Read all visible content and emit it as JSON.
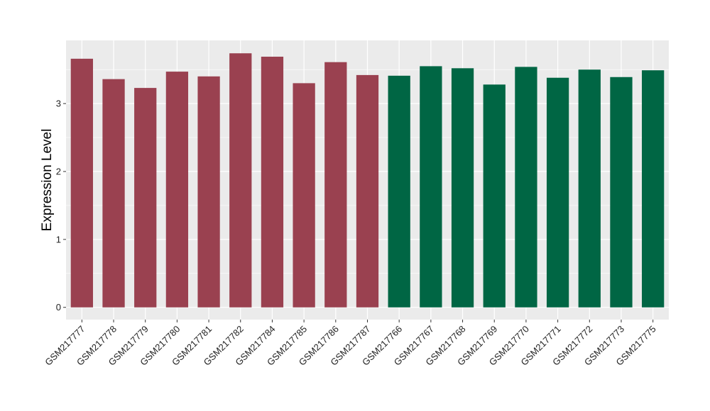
{
  "chart_data": {
    "type": "bar",
    "ylabel": "Expression Level",
    "xlabel": "",
    "ylim": [
      -0.18,
      3.93
    ],
    "yticks": [
      0,
      1,
      2,
      3
    ],
    "grid": true,
    "background": "#EBEBEB",
    "colors": {
      "group_a": "#9A4150",
      "group_b": "#006644"
    },
    "categories": [
      "GSM217777",
      "GSM217778",
      "GSM217779",
      "GSM217780",
      "GSM217781",
      "GSM217782",
      "GSM217784",
      "GSM217785",
      "GSM217786",
      "GSM217787",
      "GSM217766",
      "GSM217767",
      "GSM217768",
      "GSM217769",
      "GSM217770",
      "GSM217771",
      "GSM217772",
      "GSM217773",
      "GSM217775"
    ],
    "values": [
      3.66,
      3.36,
      3.23,
      3.47,
      3.4,
      3.74,
      3.69,
      3.3,
      3.61,
      3.42,
      3.41,
      3.55,
      3.52,
      3.28,
      3.54,
      3.38,
      3.5,
      3.39,
      3.49
    ],
    "groups": [
      "group_a",
      "group_a",
      "group_a",
      "group_a",
      "group_a",
      "group_a",
      "group_a",
      "group_a",
      "group_a",
      "group_a",
      "group_b",
      "group_b",
      "group_b",
      "group_b",
      "group_b",
      "group_b",
      "group_b",
      "group_b",
      "group_b"
    ]
  }
}
